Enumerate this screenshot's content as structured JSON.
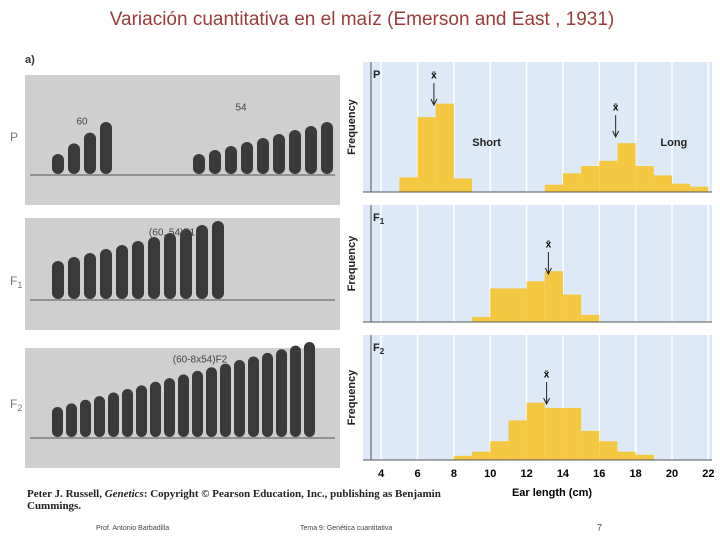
{
  "title": "Variación cuantitativa en el maíz (Emerson and East , 1931)",
  "photo": {
    "panel_label": "a)",
    "rows": [
      {
        "label": "P",
        "texts": [
          "60",
          "54"
        ]
      },
      {
        "label": "F",
        "label_sub": "1",
        "texts": [
          "(60, 54)F1"
        ]
      },
      {
        "label": "F",
        "label_sub": "2",
        "texts": [
          "(60-8x54)F2"
        ]
      }
    ]
  },
  "citation": {
    "before": "Peter J. Russell, ",
    "italic": "Genetics",
    "after": ": Copyright © Pearson Education, Inc., publishing as Benjamin Cummings."
  },
  "footer": {
    "author": "Prof. Antonio Barbadilla",
    "topic": "Tema 9: Genética cuantitativa",
    "page": "7"
  },
  "chart_data": [
    {
      "type": "histogram",
      "label": "P",
      "ylabel": "Frequency",
      "color": "#f5c842",
      "bins": [
        5,
        6,
        7,
        8,
        9,
        10,
        11,
        12,
        13,
        14,
        15,
        16,
        17,
        18,
        19,
        20,
        21,
        22
      ],
      "values": [
        14,
        72,
        85,
        13,
        0,
        0,
        0,
        0,
        7,
        18,
        25,
        30,
        47,
        25,
        16,
        8,
        5
      ],
      "xlim": [
        3,
        22.2
      ],
      "ylim": [
        0,
        125
      ],
      "mean_symbol": "x̄",
      "means": [
        6.9,
        16.9
      ],
      "annotations": [
        {
          "text": "Short",
          "x": 9.8,
          "y": 47
        },
        {
          "text": "Long",
          "x": 20.1,
          "y": 47
        }
      ]
    },
    {
      "type": "histogram",
      "label": "F",
      "label_sub": "1",
      "ylabel": "Frequency",
      "color": "#f5c842",
      "bins": [
        9,
        10,
        11,
        12,
        13,
        14,
        15,
        16
      ],
      "values": [
        5,
        33,
        33,
        40,
        50,
        27,
        7
      ],
      "xlim": [
        3,
        22.2
      ],
      "ylim": [
        0,
        115
      ],
      "mean_symbol": "x̄",
      "means": [
        13.2
      ]
    },
    {
      "type": "histogram",
      "label": "F",
      "label_sub": "2",
      "ylabel": "Frequency",
      "color": "#f5c842",
      "bins": [
        8,
        9,
        10,
        11,
        12,
        13,
        14,
        15,
        16,
        17,
        18,
        19
      ],
      "values": [
        4,
        8,
        18,
        38,
        55,
        50,
        50,
        28,
        18,
        8,
        5
      ],
      "xlim": [
        3,
        22.2
      ],
      "ylim": [
        0,
        120
      ],
      "mean_symbol": "x̄",
      "means": [
        13.1
      ],
      "xticks": [
        4,
        6,
        8,
        10,
        12,
        14,
        16,
        18,
        20,
        22
      ],
      "xlabel": "Ear length (cm)"
    }
  ]
}
